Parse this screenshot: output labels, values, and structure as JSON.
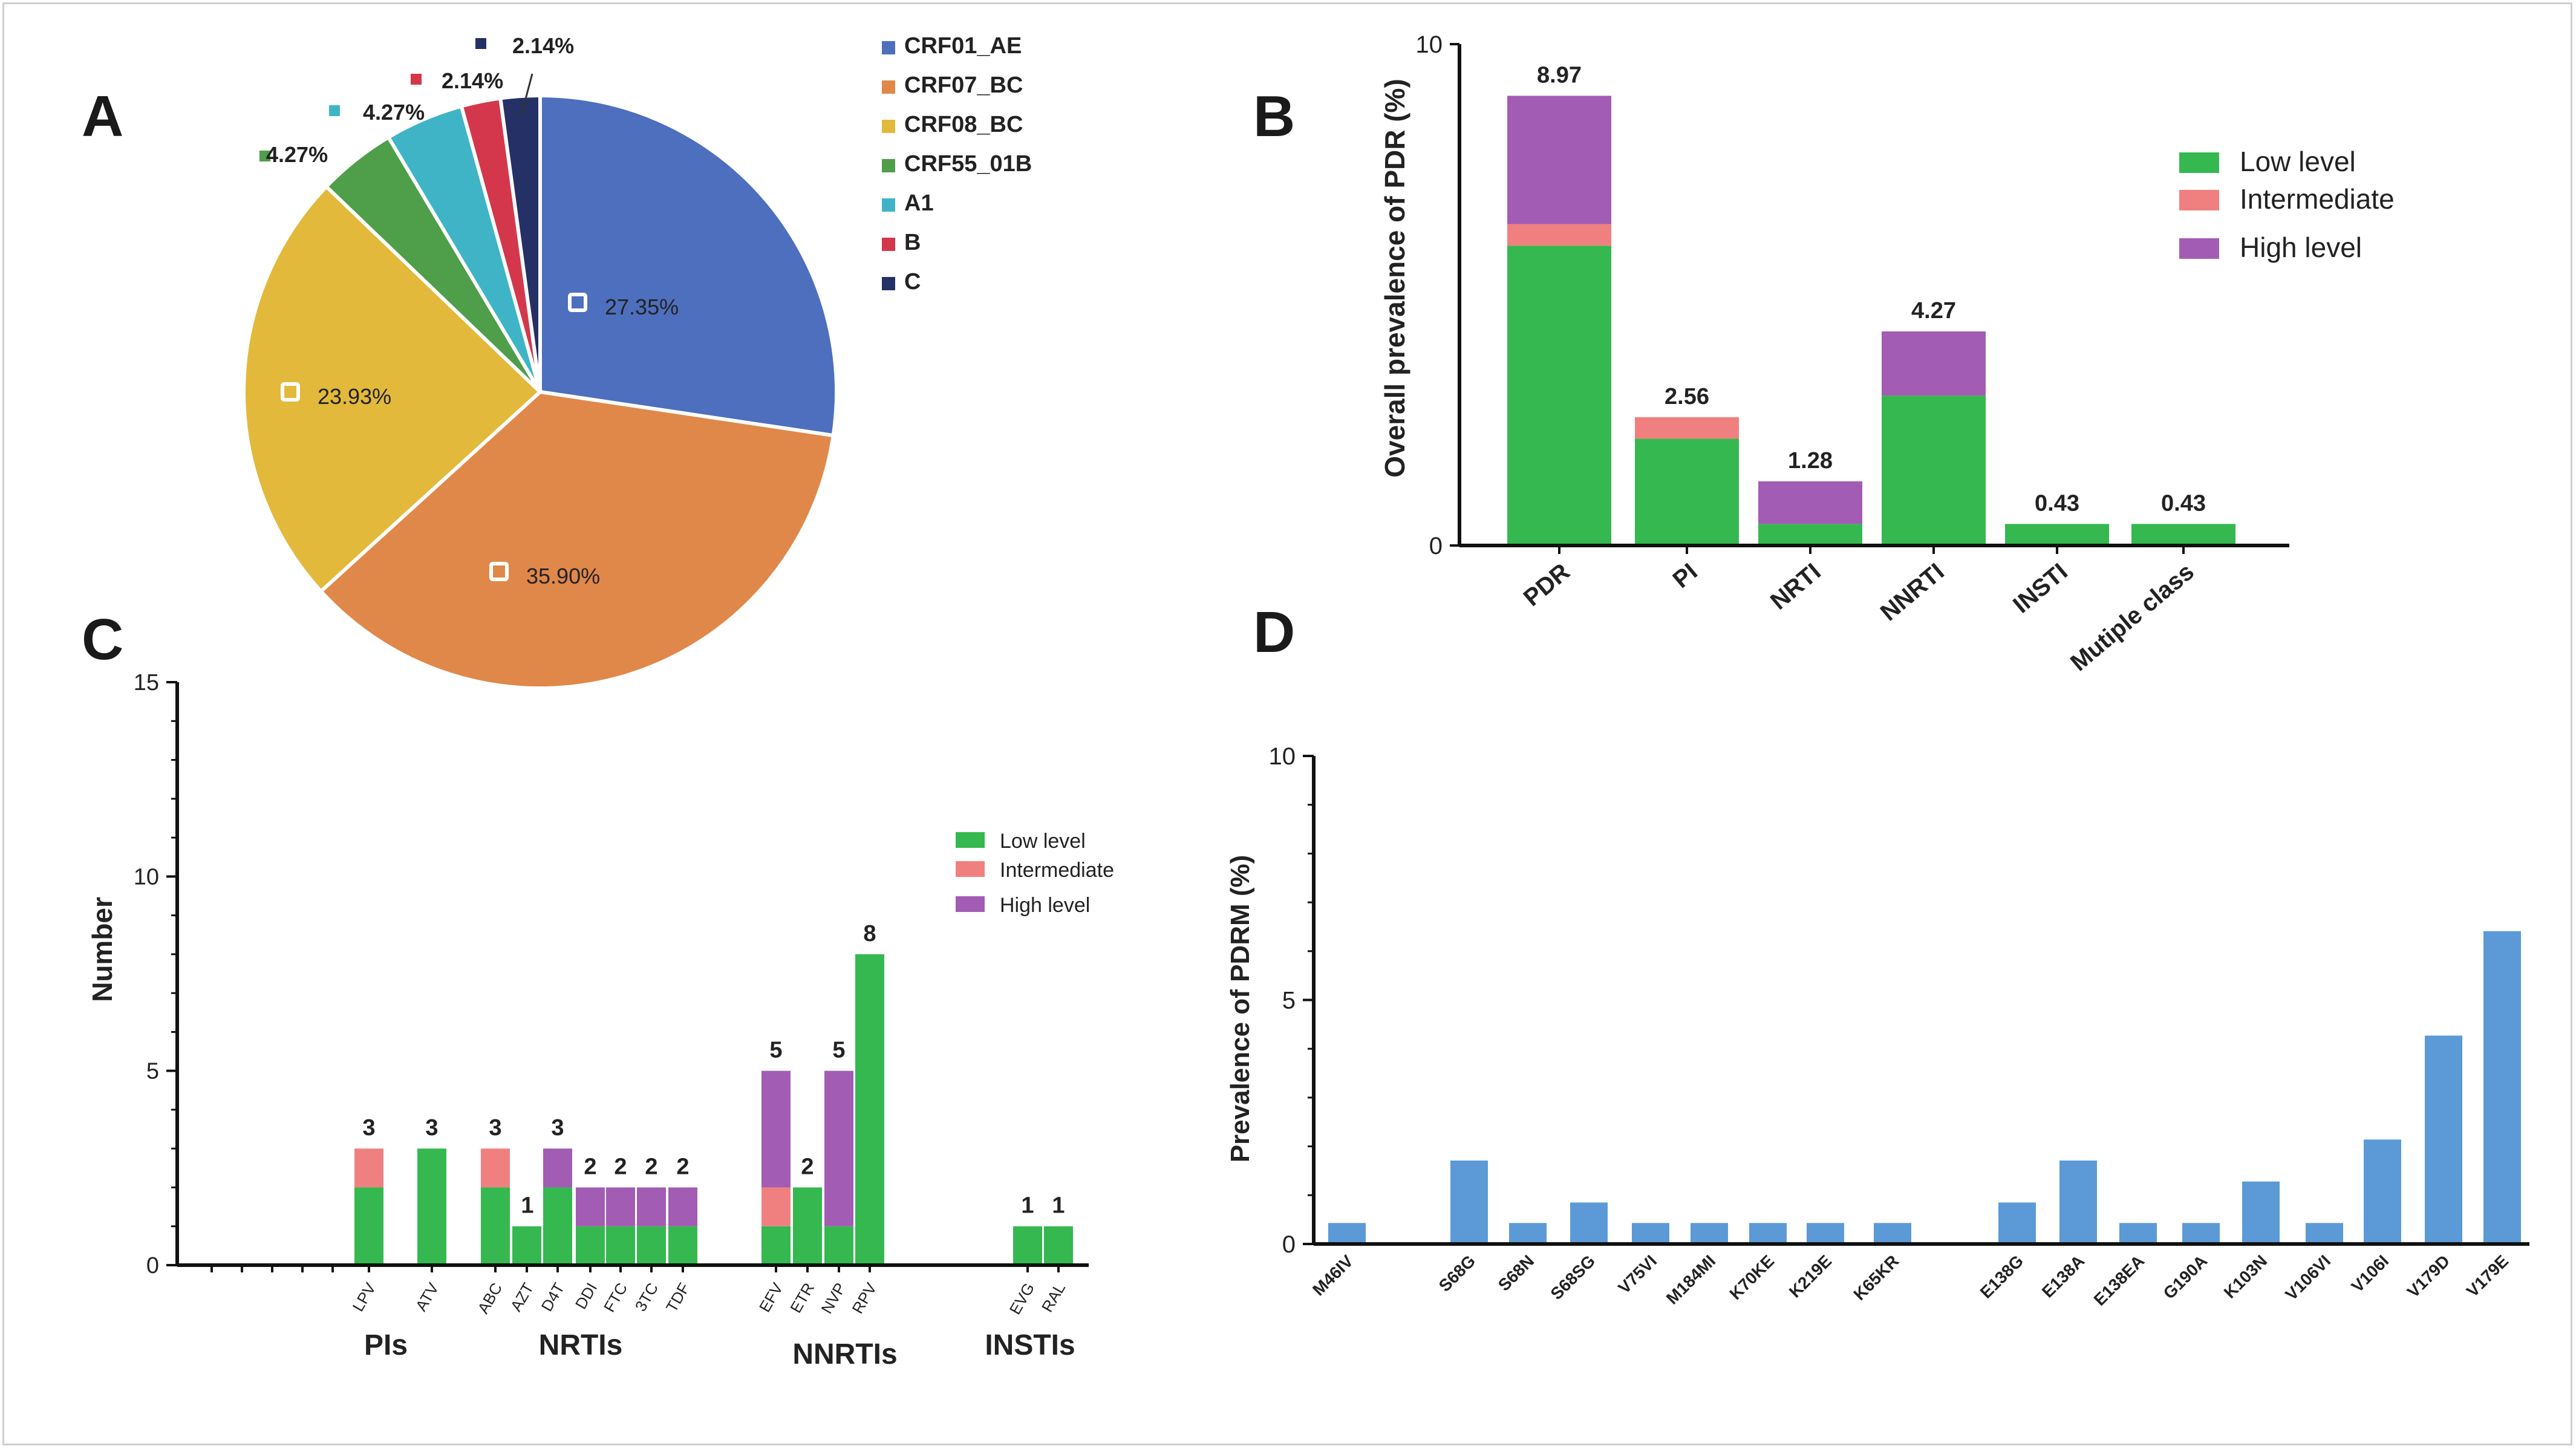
{
  "colors": {
    "low": "#35b84f",
    "intermediate": "#f08080",
    "high": "#a25cb3",
    "prdm_bar": "#5b9ad6",
    "text": "#222222"
  },
  "panel_letters": [
    "A",
    "B",
    "C",
    "D"
  ],
  "chart_data": [
    {
      "panel": "A",
      "type": "pie",
      "categories": [
        "CRF01_AE",
        "CRF07_BC",
        "CRF08_BC",
        "CRF55_01B",
        "A1",
        "B",
        "C"
      ],
      "values": [
        27.35,
        35.9,
        23.93,
        4.27,
        4.27,
        2.14,
        2.14
      ],
      "labels": [
        "27.35%",
        "35.90%",
        "23.93%",
        "4.27%",
        "4.27%",
        "2.14%",
        "2.14%"
      ],
      "colors": [
        "#4e6fbe",
        "#e0884a",
        "#e2b93b",
        "#4f9e4a",
        "#3fb4c6",
        "#d4374b",
        "#253066"
      ],
      "legend_position": "top-right"
    },
    {
      "panel": "B",
      "type": "bar",
      "stacked": true,
      "ylabel": "Overall prevalence of PDR (%)",
      "ylim": [
        0,
        10
      ],
      "yticks": [
        "0",
        "10"
      ],
      "categories": [
        "PDR",
        "PI",
        "NRTI",
        "NNRTI",
        "INSTI",
        "Mutiple class"
      ],
      "totals": [
        "8.97",
        "2.56",
        "1.28",
        "4.27",
        "0.43",
        "0.43"
      ],
      "series": [
        {
          "name": "Low level",
          "values": [
            5.98,
            2.13,
            0.43,
            2.99,
            0.43,
            0.43
          ]
        },
        {
          "name": "Intermediate",
          "values": [
            0.43,
            0.43,
            0,
            0,
            0,
            0
          ]
        },
        {
          "name": "High level",
          "values": [
            2.56,
            0,
            0.85,
            1.28,
            0,
            0
          ]
        }
      ],
      "legend_position": "top-right"
    },
    {
      "panel": "C",
      "type": "bar",
      "stacked": true,
      "ylabel": "Number",
      "ylim": [
        0,
        15
      ],
      "yticks": [
        "0",
        "5",
        "10",
        "15"
      ],
      "categories": [
        "LPV",
        "ATV",
        "ABC",
        "AZT",
        "D4T",
        "DDI",
        "FTC",
        "3TC",
        "TDF",
        "EFV",
        "ETR",
        "NVP",
        "RPV",
        "EVG",
        "RAL"
      ],
      "groups": [
        {
          "name": "PIs",
          "members": [
            "LPV",
            "ATV"
          ]
        },
        {
          "name": "NRTIs",
          "members": [
            "ABC",
            "AZT",
            "D4T",
            "DDI",
            "FTC",
            "3TC",
            "TDF"
          ]
        },
        {
          "name": "NNRTIs",
          "members": [
            "EFV",
            "ETR",
            "NVP",
            "RPV"
          ]
        },
        {
          "name": "INSTIs",
          "members": [
            "EVG",
            "RAL"
          ]
        }
      ],
      "totals": [
        "3",
        "3",
        "3",
        "1",
        "3",
        "2",
        "2",
        "2",
        "2",
        "5",
        "2",
        "5",
        "8",
        "1",
        "1"
      ],
      "series": [
        {
          "name": "Low level",
          "values": [
            2,
            3,
            2,
            1,
            2,
            1,
            1,
            1,
            1,
            1,
            2,
            1,
            8,
            1,
            1
          ]
        },
        {
          "name": "Intermediate",
          "values": [
            1,
            0,
            1,
            0,
            0,
            0,
            0,
            0,
            0,
            1,
            0,
            0,
            0,
            0,
            0
          ]
        },
        {
          "name": "High level",
          "values": [
            0,
            0,
            0,
            0,
            1,
            1,
            1,
            1,
            1,
            3,
            0,
            4,
            0,
            0,
            0
          ]
        }
      ],
      "legend_position": "center-right"
    },
    {
      "panel": "D",
      "type": "bar",
      "ylabel": "Prevalence of PDRM (%)",
      "ylim": [
        0,
        10
      ],
      "yticks": [
        "0",
        "5",
        "10"
      ],
      "categories": [
        "M46IV",
        "S68G",
        "S68N",
        "S68SG",
        "V75VI",
        "M184MI",
        "K70KE",
        "K219E",
        "K65KR",
        "E138G",
        "E138A",
        "E138EA",
        "G190A",
        "K103N",
        "V106VI",
        "V106I",
        "V179D",
        "V179E"
      ],
      "values": [
        0.43,
        1.71,
        0.43,
        0.85,
        0.43,
        0.43,
        0.43,
        0.43,
        0.43,
        0.85,
        1.71,
        0.43,
        0.43,
        1.28,
        0.43,
        2.14,
        4.27,
        6.41
      ]
    }
  ]
}
